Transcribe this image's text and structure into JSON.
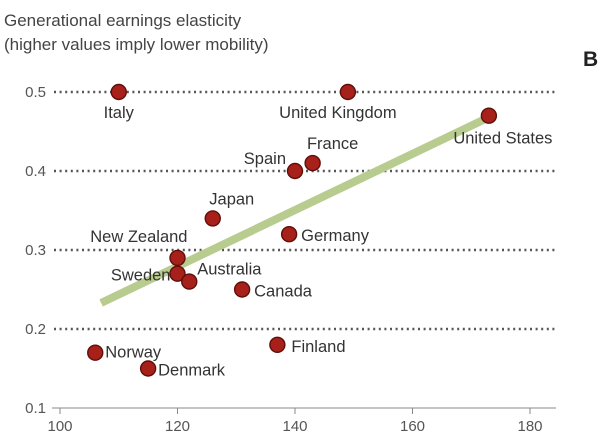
{
  "chart_data": {
    "type": "scatter",
    "title_lines": [
      "Generational earnings elasticity",
      "(higher values imply lower mobility)"
    ],
    "panel_label": "B",
    "xlim": [
      100,
      180
    ],
    "ylim": [
      0.1,
      0.5
    ],
    "x_ticks": [
      100,
      120,
      140,
      160,
      180
    ],
    "y_ticks": [
      0.1,
      0.2,
      0.3,
      0.4,
      0.5
    ],
    "x_tick_labels": [
      "100",
      "120",
      "140",
      "160",
      "180"
    ],
    "y_tick_labels": [
      "0.1",
      "0.2",
      "0.3",
      "0.4",
      "0.5"
    ],
    "grid": "horizontal dotted",
    "trend_line": {
      "x": [
        107,
        173
      ],
      "y": [
        0.233,
        0.468
      ],
      "color": "#b9cc8f"
    },
    "marker_color": "#a8201a",
    "points": [
      {
        "label": "Italy",
        "x": 110,
        "y": 0.5
      },
      {
        "label": "United Kingdom",
        "x": 149,
        "y": 0.5
      },
      {
        "label": "United States",
        "x": 173,
        "y": 0.47
      },
      {
        "label": "France",
        "x": 143,
        "y": 0.41
      },
      {
        "label": "Spain",
        "x": 140,
        "y": 0.4
      },
      {
        "label": "Japan",
        "x": 126,
        "y": 0.34
      },
      {
        "label": "Germany",
        "x": 139,
        "y": 0.32
      },
      {
        "label": "New Zealand",
        "x": 120,
        "y": 0.29
      },
      {
        "label": "Sweden",
        "x": 120,
        "y": 0.27
      },
      {
        "label": "Australia",
        "x": 122,
        "y": 0.26
      },
      {
        "label": "Canada",
        "x": 131,
        "y": 0.25
      },
      {
        "label": "Norway",
        "x": 106,
        "y": 0.17
      },
      {
        "label": "Finland",
        "x": 137,
        "y": 0.18
      },
      {
        "label": "Denmark",
        "x": 115,
        "y": 0.15
      }
    ]
  }
}
